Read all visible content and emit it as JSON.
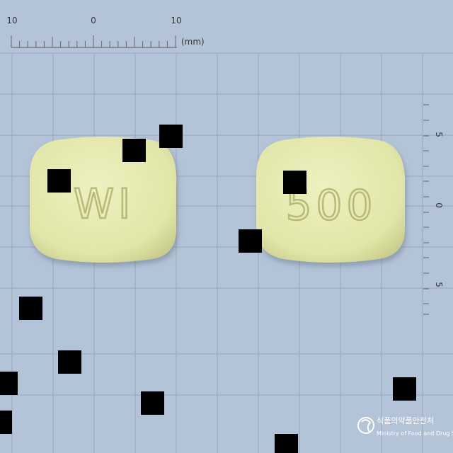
{
  "ruler_top": {
    "labels": [
      "10",
      "0",
      "10"
    ],
    "unit": "(mm)"
  },
  "ruler_right": {
    "labels": [
      "5",
      "0",
      "5"
    ]
  },
  "tablets": [
    {
      "imprint": "WI"
    },
    {
      "imprint": "500"
    }
  ],
  "logo": {
    "line1": "식품의약품안전처",
    "line2": "Ministry of Food and Drug Safety"
  },
  "colors": {
    "background": "#b4c4d8",
    "grid": "#96a8c0",
    "tablet": "#e4e8b0",
    "occluder": "#000000"
  }
}
